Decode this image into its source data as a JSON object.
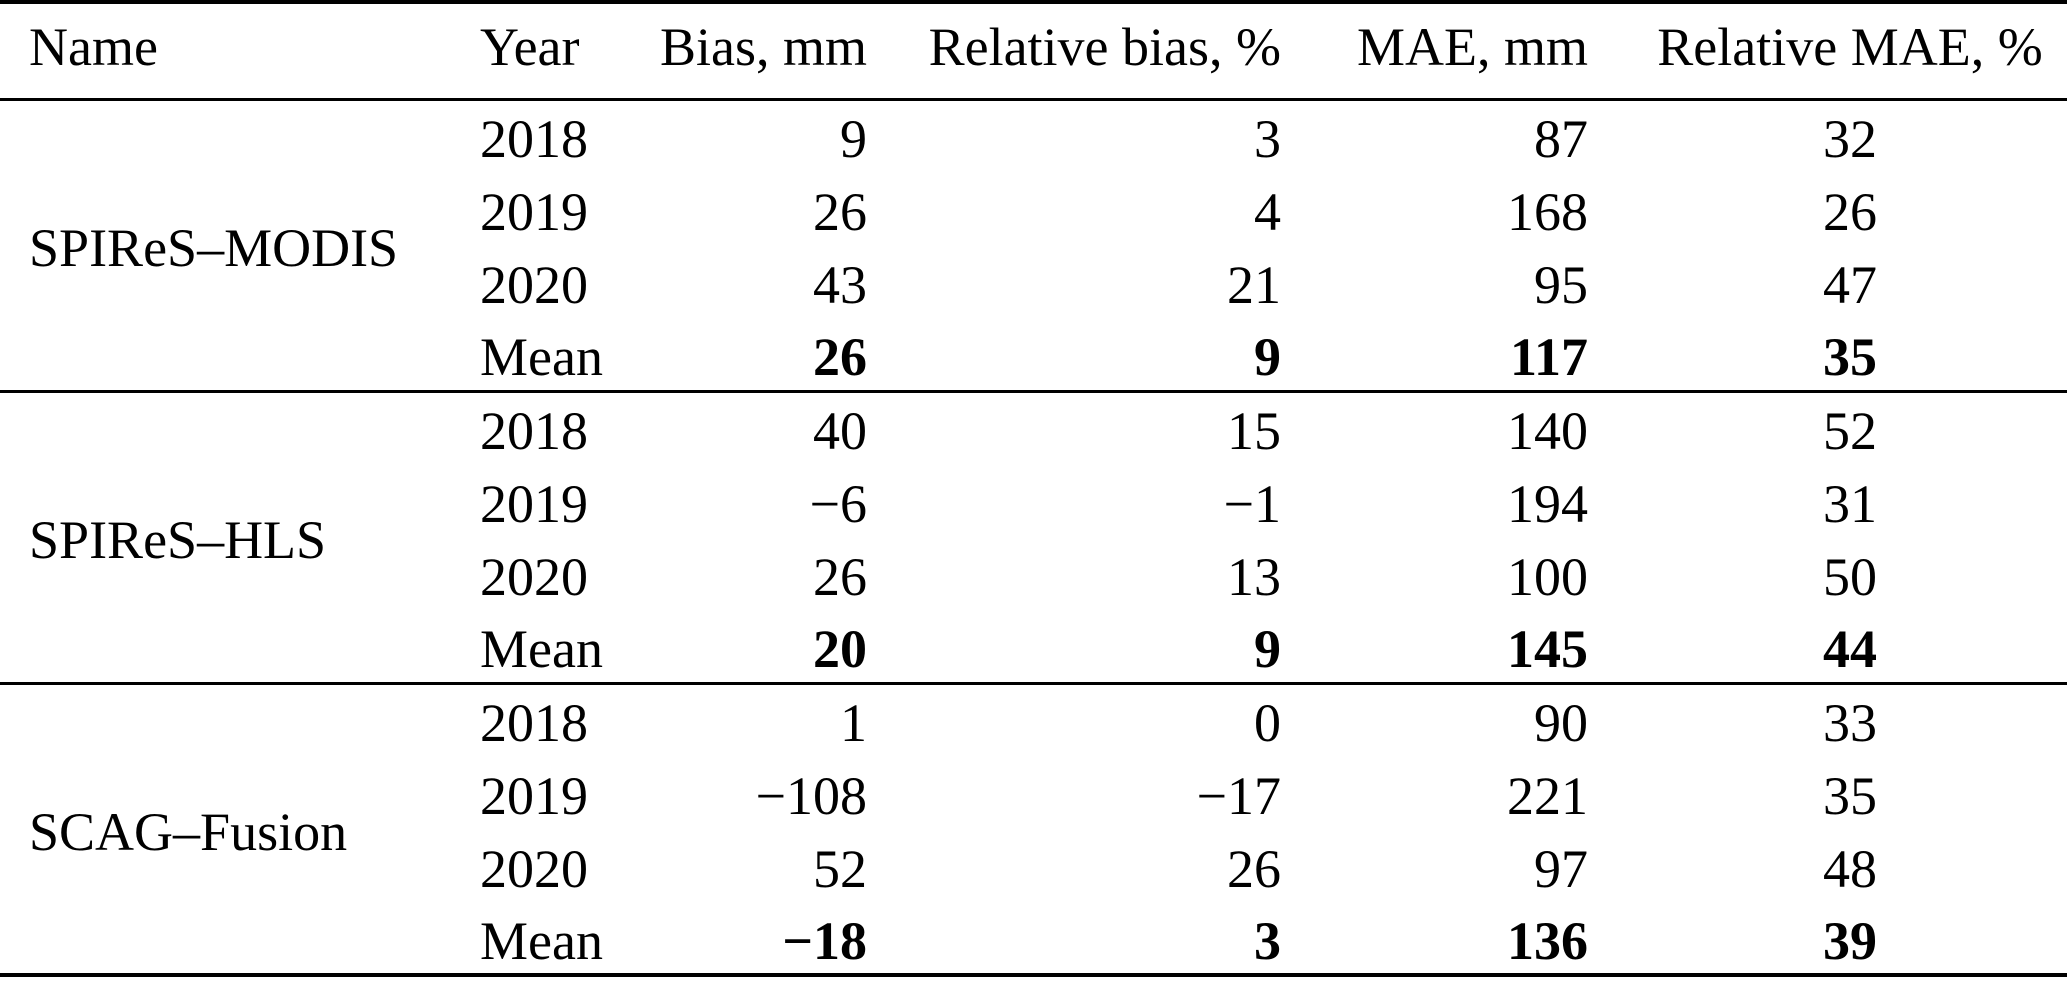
{
  "colors": {
    "background": "#ffffff",
    "text": "#000000",
    "rule": "#000000"
  },
  "table": {
    "columns": [
      {
        "label": "Name",
        "align": "left"
      },
      {
        "label": "Year",
        "align": "left"
      },
      {
        "label": "Bias, mm",
        "align": "right"
      },
      {
        "label": "Relative bias, %",
        "align": "right"
      },
      {
        "label": "MAE, mm",
        "align": "right"
      },
      {
        "label": "Relative MAE, %",
        "align": "center"
      }
    ],
    "groups": [
      {
        "name": "SPIReS–MODIS",
        "rows": [
          {
            "year": "2018",
            "bias": "9",
            "relative_bias": "3",
            "mae": "87",
            "relative_mae": "32",
            "bold": false
          },
          {
            "year": "2019",
            "bias": "26",
            "relative_bias": "4",
            "mae": "168",
            "relative_mae": "26",
            "bold": false
          },
          {
            "year": "2020",
            "bias": "43",
            "relative_bias": "21",
            "mae": "95",
            "relative_mae": "47",
            "bold": false
          },
          {
            "year": "Mean",
            "bias": "26",
            "relative_bias": "9",
            "mae": "117",
            "relative_mae": "35",
            "bold": true
          }
        ]
      },
      {
        "name": "SPIReS–HLS",
        "rows": [
          {
            "year": "2018",
            "bias": "40",
            "relative_bias": "15",
            "mae": "140",
            "relative_mae": "52",
            "bold": false
          },
          {
            "year": "2019",
            "bias": "−6",
            "relative_bias": "−1",
            "mae": "194",
            "relative_mae": "31",
            "bold": false
          },
          {
            "year": "2020",
            "bias": "26",
            "relative_bias": "13",
            "mae": "100",
            "relative_mae": "50",
            "bold": false
          },
          {
            "year": "Mean",
            "bias": "20",
            "relative_bias": "9",
            "mae": "145",
            "relative_mae": "44",
            "bold": true
          }
        ]
      },
      {
        "name": "SCAG–Fusion",
        "rows": [
          {
            "year": "2018",
            "bias": "1",
            "relative_bias": "0",
            "mae": "90",
            "relative_mae": "33",
            "bold": false
          },
          {
            "year": "2019",
            "bias": "−108",
            "relative_bias": "−17",
            "mae": "221",
            "relative_mae": "35",
            "bold": false
          },
          {
            "year": "2020",
            "bias": "52",
            "relative_bias": "26",
            "mae": "97",
            "relative_mae": "48",
            "bold": false
          },
          {
            "year": "Mean",
            "bias": "−18",
            "relative_bias": "3",
            "mae": "136",
            "relative_mae": "39",
            "bold": true
          }
        ]
      }
    ]
  }
}
